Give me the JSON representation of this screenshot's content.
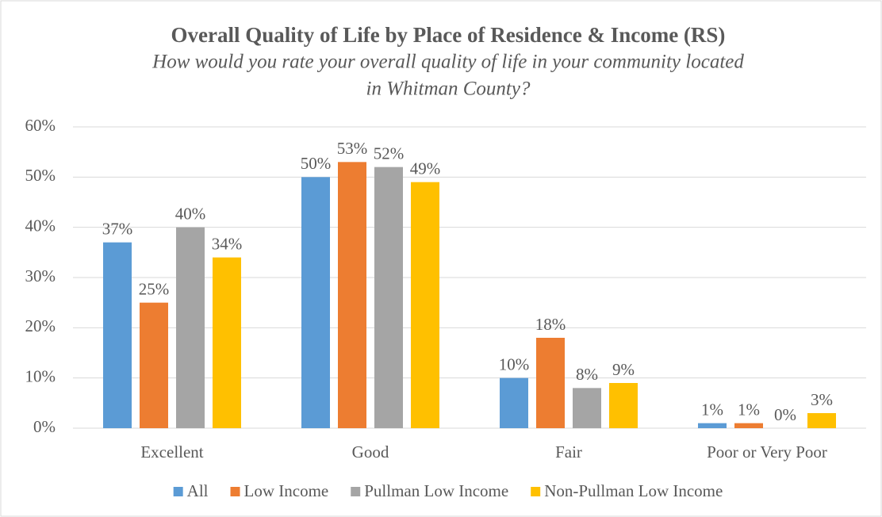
{
  "chart_data": {
    "type": "bar",
    "title": "Overall Quality of Life by Place of Residence & Income (RS)",
    "subtitle": [
      "How would you rate your overall quality of life in your community located",
      "in Whitman County?"
    ],
    "categories": [
      "Excellent",
      "Good",
      "Fair",
      "Poor or Very Poor"
    ],
    "series": [
      {
        "name": "All",
        "color": "#5b9bd5",
        "values": [
          37,
          50,
          10,
          1
        ],
        "value_labels": [
          "37%",
          "50%",
          "10%",
          "1%"
        ]
      },
      {
        "name": "Low Income",
        "color": "#ed7d31",
        "values": [
          25,
          53,
          18,
          1
        ],
        "value_labels": [
          "25%",
          "53%",
          "18%",
          "1%"
        ]
      },
      {
        "name": "Pullman Low Income",
        "color": "#a5a5a5",
        "values": [
          40,
          52,
          8,
          0
        ],
        "value_labels": [
          "40%",
          "52%",
          "8%",
          "0%"
        ]
      },
      {
        "name": "Non-Pullman Low Income",
        "color": "#ffc000",
        "values": [
          34,
          49,
          9,
          3
        ],
        "value_labels": [
          "34%",
          "49%",
          "9%",
          "3%"
        ]
      }
    ],
    "ylim": [
      0,
      60
    ],
    "yticks": [
      {
        "value": 0,
        "label": "0%"
      },
      {
        "value": 10,
        "label": "10%"
      },
      {
        "value": 20,
        "label": "20%"
      },
      {
        "value": 30,
        "label": "30%"
      },
      {
        "value": 40,
        "label": "40%"
      },
      {
        "value": 50,
        "label": "50%"
      },
      {
        "value": 60,
        "label": "60%"
      }
    ],
    "grid": true,
    "legend": "bottom"
  }
}
